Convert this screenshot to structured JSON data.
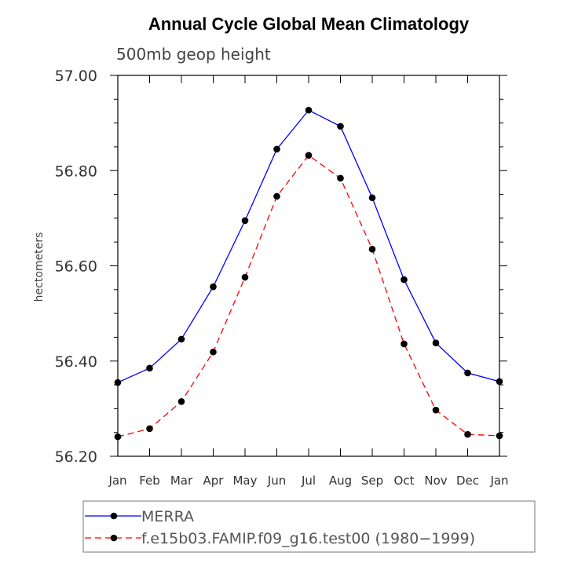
{
  "chart_data": {
    "type": "line",
    "title": "Annual Cycle Global Mean Climatology",
    "subtitle": "500mb geop height",
    "xlabel": "",
    "ylabel": "hectometers",
    "ylim": [
      56.2,
      57.0
    ],
    "yticks": [
      "56.20",
      "56.40",
      "56.60",
      "56.80",
      "57.00"
    ],
    "ytick_values": [
      56.2,
      56.4,
      56.6,
      56.8,
      57.0
    ],
    "categories": [
      "Jan",
      "Feb",
      "Mar",
      "Apr",
      "May",
      "Jun",
      "Jul",
      "Aug",
      "Sep",
      "Oct",
      "Nov",
      "Dec",
      "Jan"
    ],
    "grid": false,
    "legend_position": "bottom",
    "series": [
      {
        "name": "MERRA",
        "color": "#0000ff",
        "dash": "solid",
        "values": [
          56.355,
          56.385,
          56.446,
          56.556,
          56.695,
          56.845,
          56.927,
          56.893,
          56.743,
          56.571,
          56.438,
          56.375,
          56.357
        ]
      },
      {
        "name": "f.e15b03.FAMIP.f09_g16.test00 (1980−1999)",
        "color": "#ff0000",
        "dash": "dashed",
        "values": [
          56.241,
          56.258,
          56.315,
          56.419,
          56.576,
          56.746,
          56.832,
          56.784,
          56.635,
          56.436,
          56.297,
          56.246,
          56.243
        ]
      }
    ]
  }
}
